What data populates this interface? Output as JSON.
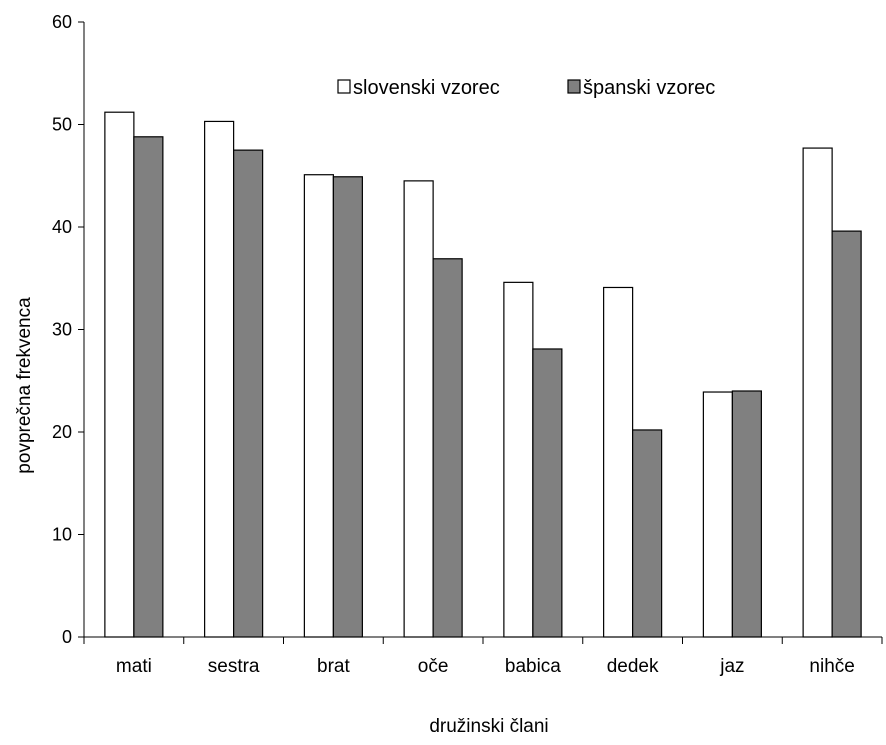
{
  "chart_data": {
    "type": "bar",
    "title": "",
    "xlabel": "družinski člani",
    "ylabel": "povprečna frekvenca",
    "ylim": [
      0,
      60
    ],
    "yticks": [
      0,
      10,
      20,
      30,
      40,
      50,
      60
    ],
    "grid": false,
    "legend_position": "top-right",
    "categories": [
      "mati",
      "sestra",
      "brat",
      "oče",
      "babica",
      "dedek",
      "jaz",
      "nihče"
    ],
    "series": [
      {
        "name": "slovenski vzorec",
        "color": "#ffffff",
        "values": [
          51.2,
          50.3,
          45.1,
          44.5,
          34.6,
          34.1,
          23.9,
          47.7
        ]
      },
      {
        "name": "španski vzorec",
        "color": "#808080",
        "values": [
          48.8,
          47.5,
          44.9,
          36.9,
          28.1,
          20.2,
          24.0,
          39.6
        ]
      }
    ]
  }
}
